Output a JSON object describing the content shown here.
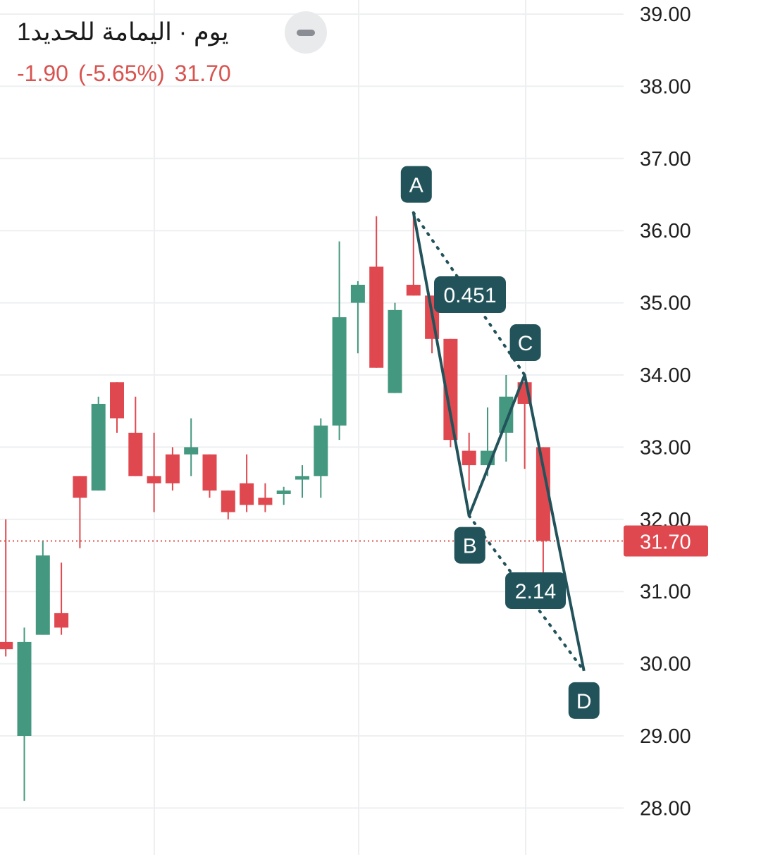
{
  "header": {
    "title": "يوم · اليمامة للحديد",
    "interval": "1",
    "change": "-1.90",
    "change_pct": "(-5.65%)",
    "last": "31.70"
  },
  "colors": {
    "up": "#44987f",
    "down": "#e0484f",
    "pattern": "#22535b",
    "grid": "#eeeff1",
    "price_line": "#d9534f",
    "text": "#1f1f1f"
  },
  "chart_data": {
    "type": "candlestick",
    "ylim": [
      28,
      39
    ],
    "y_ticks": [
      "39.00",
      "38.00",
      "37.00",
      "36.00",
      "35.00",
      "34.00",
      "33.00",
      "32.00",
      "31.00",
      "30.00",
      "29.00",
      "28.00"
    ],
    "last_price": 31.7,
    "last_price_label": "31.70",
    "candles": [
      {
        "i": -1,
        "o": 30.3,
        "h": 32.0,
        "l": 30.1,
        "c": 30.2
      },
      {
        "i": 0,
        "o": 29.0,
        "h": 30.5,
        "l": 28.1,
        "c": 30.3
      },
      {
        "i": 1,
        "o": 30.4,
        "h": 31.7,
        "l": 30.4,
        "c": 31.5
      },
      {
        "i": 2,
        "o": 30.7,
        "h": 31.4,
        "l": 30.4,
        "c": 30.5
      },
      {
        "i": 3,
        "o": 32.6,
        "h": 32.6,
        "l": 31.6,
        "c": 32.3
      },
      {
        "i": 4,
        "o": 32.4,
        "h": 33.7,
        "l": 32.4,
        "c": 33.6
      },
      {
        "i": 5,
        "o": 33.9,
        "h": 33.9,
        "l": 33.2,
        "c": 33.4
      },
      {
        "i": 6,
        "o": 33.2,
        "h": 33.7,
        "l": 32.6,
        "c": 32.6
      },
      {
        "i": 7,
        "o": 32.6,
        "h": 33.2,
        "l": 32.1,
        "c": 32.5
      },
      {
        "i": 8,
        "o": 32.9,
        "h": 33.0,
        "l": 32.4,
        "c": 32.5
      },
      {
        "i": 9,
        "o": 32.9,
        "h": 33.4,
        "l": 32.6,
        "c": 33.0
      },
      {
        "i": 10,
        "o": 32.9,
        "h": 32.9,
        "l": 32.3,
        "c": 32.4
      },
      {
        "i": 11,
        "o": 32.4,
        "h": 32.4,
        "l": 32.0,
        "c": 32.1
      },
      {
        "i": 12,
        "o": 32.5,
        "h": 32.9,
        "l": 32.1,
        "c": 32.2
      },
      {
        "i": 13,
        "o": 32.3,
        "h": 32.5,
        "l": 32.1,
        "c": 32.2
      },
      {
        "i": 14,
        "o": 32.35,
        "h": 32.45,
        "l": 32.2,
        "c": 32.4
      },
      {
        "i": 15,
        "o": 32.55,
        "h": 32.75,
        "l": 32.3,
        "c": 32.6
      },
      {
        "i": 16,
        "o": 32.6,
        "h": 33.4,
        "l": 32.3,
        "c": 33.3
      },
      {
        "i": 17,
        "o": 33.3,
        "h": 35.85,
        "l": 33.1,
        "c": 34.8
      },
      {
        "i": 18,
        "o": 35.0,
        "h": 35.3,
        "l": 34.3,
        "c": 35.25
      },
      {
        "i": 19,
        "o": 35.5,
        "h": 36.2,
        "l": 34.1,
        "c": 34.1
      },
      {
        "i": 20,
        "o": 33.75,
        "h": 35.0,
        "l": 33.75,
        "c": 34.9
      },
      {
        "i": 21,
        "o": 35.25,
        "h": 36.25,
        "l": 35.1,
        "c": 35.1
      },
      {
        "i": 22,
        "o": 35.1,
        "h": 35.1,
        "l": 34.3,
        "c": 34.5
      },
      {
        "i": 23,
        "o": 34.5,
        "h": 34.5,
        "l": 33.0,
        "c": 33.1
      },
      {
        "i": 24,
        "o": 32.95,
        "h": 33.2,
        "l": 32.4,
        "c": 32.75
      },
      {
        "i": 25,
        "o": 32.75,
        "h": 33.55,
        "l": 32.6,
        "c": 32.95
      },
      {
        "i": 26,
        "o": 33.2,
        "h": 34.0,
        "l": 32.8,
        "c": 33.7
      },
      {
        "i": 27,
        "o": 33.9,
        "h": 33.9,
        "l": 32.7,
        "c": 33.6
      },
      {
        "i": 28,
        "o": 33.0,
        "h": 33.0,
        "l": 31.1,
        "c": 31.7
      }
    ],
    "pattern": {
      "points": [
        {
          "label": "A",
          "i": 21,
          "price": 36.25
        },
        {
          "label": "B",
          "i": 24,
          "price": 32.05
        },
        {
          "label": "C",
          "i": 27,
          "price": 34.0
        },
        {
          "label": "D",
          "i": 30.2,
          "price": 29.9
        }
      ],
      "ratios": [
        {
          "label": "0.451",
          "from": "A",
          "to": "C"
        },
        {
          "label": "2.14",
          "from": "B",
          "to": "D"
        }
      ]
    }
  }
}
